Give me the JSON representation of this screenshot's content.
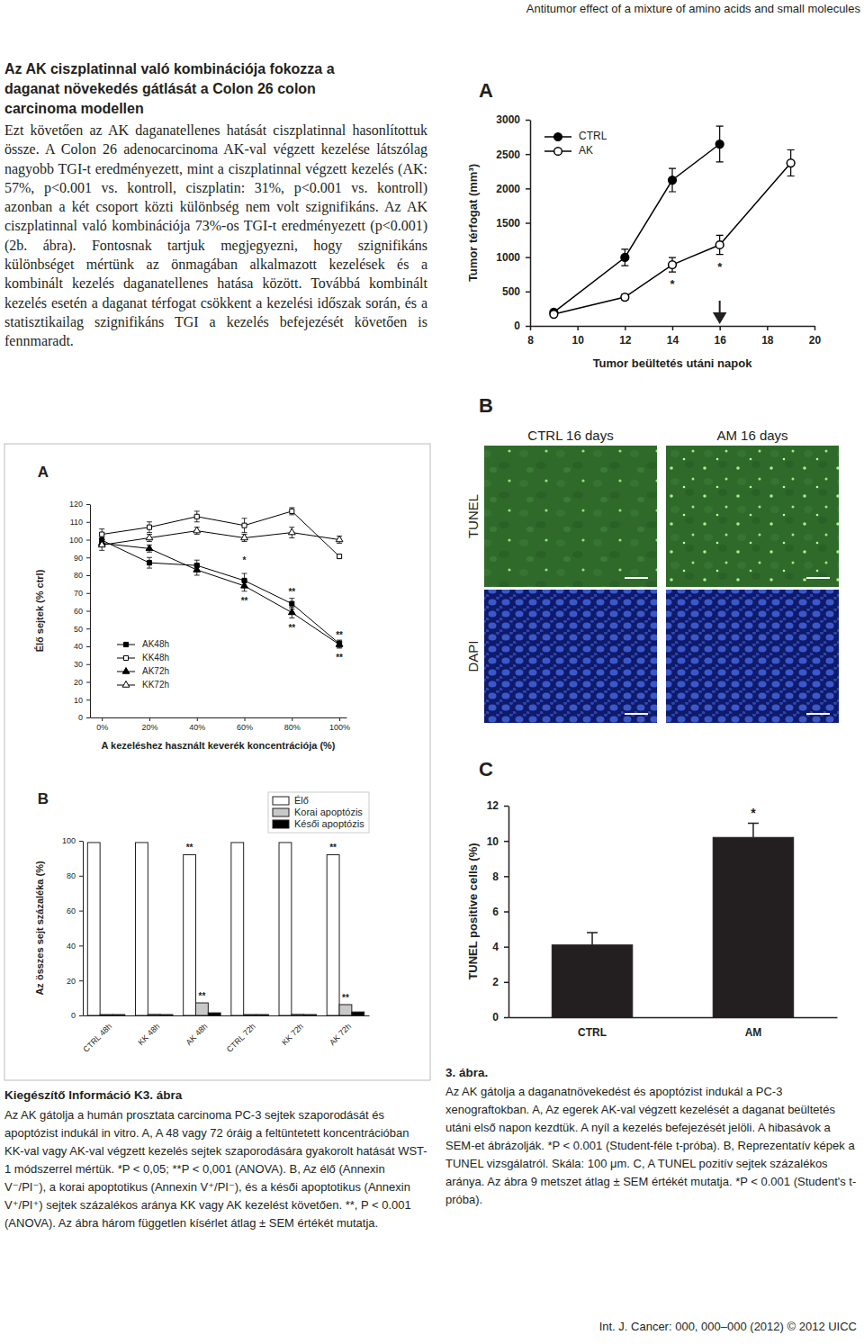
{
  "header": "Antitumor effect of a mixture of amino acids and small molecules",
  "section": {
    "heading": "Az AK ciszplatinnal való kombinációja fokozza a daganat növekedés gátlását a Colon 26 colon carcinoma modellen",
    "paragraph": "Ezt követően az AK daganatellenes hatását ciszplatinnal hasonlítottuk össze. A Colon 26 adenocarcinoma AK-val végzett kezelése látszólag nagyobb TGI-t eredményezett, mint a ciszplatinnal végzett kezelés (AK: 57%, p<0.001 vs. kontroll, ciszplatin: 31%, p<0.001 vs. kontroll) azonban a két csoport közti különbség nem volt szignifikáns. Az AK ciszplatinnal való kombinációja 73%-os TGI-t eredményezett (p<0.001) (2b. ábra). Fontosnak tartjuk megjegyezni, hogy szignifikáns különbséget mértünk az önmagában alkalmazott kezelések és a kombinált kezelés daganatellenes hatása között. Továbbá kombinált kezelés esetén a daganat térfogat csökkent a kezelési időszak során, és a statisztikailag szignifikáns TGI a kezelés befejezését követően is fennmaradt."
  },
  "figure3": {
    "panel_labels": [
      "A",
      "B",
      "C"
    ],
    "image_columns": [
      "CTRL 16 days",
      "AM 16 days"
    ],
    "image_rows": [
      "TUNEL",
      "DAPI"
    ],
    "caption_title": "3. ábra.",
    "caption": "Az AK gátolja a daganatnövekedést és apoptózist indukál a PC-3 xenograftokban. A, Az egerek AK-val végzett kezelését a daganat beültetés utáni első napon kezdtük. A nyíl a kezelés befejezését jelöli. A hibasávok a SEM-et ábrázolják. *P < 0.001 (Student-féle t-próba). B, Reprezentatív képek a TUNEL vizsgálatról. Skála: 100 μm. C, A TUNEL pozitív sejtek százalékos aránya. Az ábra 9 metszet átlag ± SEM értékét mutatja. *P < 0.001 (Student's t-próba)."
  },
  "figure_k3": {
    "panel_labels": [
      "A",
      "B"
    ],
    "caption_title": "Kiegészítő Információ K3. ábra",
    "caption": "Az AK gátolja a humán prosztata carcinoma PC-3 sejtek szaporodását és apoptózist indukál in vitro. A, A 48 vagy 72 óráig a feltüntetett koncentrációban KK-val vagy AK-val végzett kezelés sejtek szaporodására gyakorolt hatását WST-1 módszerrel mértük. *P < 0,05; **P < 0,001 (ANOVA). B, Az élő (Annexin V⁻/PI⁻), a korai apoptotikus (Annexin V⁺/PI⁻), és a késői apoptotikus (Annexin V⁺/PI⁺) sejtek százalékos aránya KK vagy AK kezelést követően. **, P < 0.001 (ANOVA). Az ábra három független kísérlet átlag ± SEM értékét mutatja."
  },
  "chart_data": [
    {
      "type": "line",
      "x": [
        9,
        12,
        14,
        16,
        19
      ],
      "xlim": [
        8,
        20
      ],
      "xticks": [
        8,
        10,
        12,
        14,
        16,
        18,
        20
      ],
      "ylim": [
        0,
        3000
      ],
      "yticks": [
        0,
        500,
        1000,
        1500,
        2000,
        2500,
        3000
      ],
      "x_label": "Tumor beültetés utáni napok",
      "y_label": "Tumor térfogat (mm³)",
      "legend": "top-left",
      "treatment_end": 16,
      "series": [
        {
          "name": "CTRL",
          "color": "#000000",
          "marker": "filled-circle",
          "values": [
            197,
            996,
            2122,
            2646,
            null
          ],
          "errors": [
            25,
            120,
            170,
            260,
            null
          ]
        },
        {
          "name": "AK",
          "color": "#000000",
          "marker": "open-circle",
          "values": [
            170,
            419,
            890,
            1179,
            2371
          ],
          "errors": [
            20,
            40,
            105,
            140,
            190
          ]
        }
      ],
      "annotations": [
        {
          "text": "*",
          "x": 14,
          "y": 600
        },
        {
          "text": "*",
          "x": 16,
          "y": 840
        }
      ]
    },
    {
      "type": "bar",
      "categories": [
        "CTRL",
        "AM"
      ],
      "values": [
        4.1,
        10.2
      ],
      "errors": [
        0.7,
        0.8
      ],
      "color": "#231f20",
      "ylim": [
        0,
        12
      ],
      "yticks": [
        0,
        2,
        4,
        6,
        8,
        10,
        12
      ],
      "y_label": "TUNEL positive cells (%)",
      "annotations": [
        {
          "text": "*",
          "x": "AM",
          "y": 11.5
        }
      ]
    },
    {
      "type": "line",
      "x": [
        0,
        20,
        40,
        60,
        80,
        100
      ],
      "xlim": [
        -5,
        103
      ],
      "xticks": [
        {
          "value": 0,
          "label": "0%"
        },
        {
          "value": 20,
          "label": "20%"
        },
        {
          "value": 40,
          "label": "40%"
        },
        {
          "value": 60,
          "label": "60%"
        },
        {
          "value": 80,
          "label": "80%"
        },
        {
          "value": 100,
          "label": "100%"
        }
      ],
      "ylim": [
        0,
        120
      ],
      "yticks": [
        0,
        10,
        20,
        30,
        40,
        50,
        60,
        70,
        80,
        90,
        100,
        110,
        120
      ],
      "x_label": "A kezeléshez használt keverék koncentrációja (%)",
      "y_label": "Élő sejtek (% ctrl)",
      "legend": "bottom-left",
      "series": [
        {
          "name": "AK48h",
          "color": "#000000",
          "marker": "filled-square",
          "values": [
            99.7,
            87,
            85.5,
            77,
            64,
            41.5
          ],
          "errors": [
            2,
            3,
            3,
            4,
            3,
            2
          ]
        },
        {
          "name": "KK48h",
          "color": "#000000",
          "marker": "open-square",
          "values": [
            103,
            107,
            113,
            108,
            116,
            90.6
          ],
          "errors": [
            3,
            3,
            3,
            4,
            2,
            1
          ]
        },
        {
          "name": "AK72h",
          "color": "#000000",
          "marker": "filled-triangle",
          "values": [
            98,
            95,
            83,
            74,
            59,
            41
          ],
          "errors": [
            2,
            2,
            3,
            3,
            3,
            2
          ]
        },
        {
          "name": "KK72h",
          "color": "#000000",
          "marker": "open-triangle",
          "values": [
            97,
            101,
            105,
            101,
            104,
            100
          ],
          "errors": [
            3,
            2,
            2,
            2,
            3,
            2
          ]
        }
      ],
      "annotations": [
        {
          "text": "*",
          "x": 60,
          "y": 88
        },
        {
          "text": "**",
          "x": 60,
          "y": 65
        },
        {
          "text": "**",
          "x": 80,
          "y": 70
        },
        {
          "text": "**",
          "x": 80,
          "y": 50
        },
        {
          "text": "**",
          "x": 100,
          "y": 46
        },
        {
          "text": "**",
          "x": 100,
          "y": 33
        }
      ]
    },
    {
      "type": "bar",
      "categories": [
        "CTRL 48h",
        "KK 48h",
        "AK 48h",
        "CTRL 72h",
        "KK 72h",
        "AK 72h"
      ],
      "ylim": [
        0,
        100
      ],
      "yticks": [
        0,
        20,
        40,
        60,
        80,
        100
      ],
      "y_label": "Az összes sejt százaléka (%)",
      "legend": "top-right",
      "series": [
        {
          "name": "Élő",
          "color": "#ffffff",
          "values": [
            99,
            99,
            92,
            99,
            99,
            92
          ]
        },
        {
          "name": "Korai apoptózis",
          "color": "#c8c8c8",
          "values": [
            0.5,
            0.6,
            7.2,
            0.5,
            0.6,
            6.2
          ]
        },
        {
          "name": "Késői apoptózis",
          "color": "#000000",
          "values": [
            0.5,
            0.5,
            1.5,
            0.5,
            0.5,
            2
          ]
        }
      ],
      "annotations": [
        {
          "text": "**",
          "x": "AK 48h",
          "series": "Élő",
          "y": 95.5
        },
        {
          "text": "**",
          "x": "AK 48h",
          "series": "Korai apoptózis",
          "y": 10.5
        },
        {
          "text": "**",
          "x": "AK 72h",
          "series": "Élő",
          "y": 95.5
        },
        {
          "text": "**",
          "x": "AK 72h",
          "series": "Korai apoptózis",
          "y": 9.5
        }
      ]
    }
  ],
  "footer": "Int. J. Cancer: 000, 000–000 (2012) © 2012 UICC"
}
